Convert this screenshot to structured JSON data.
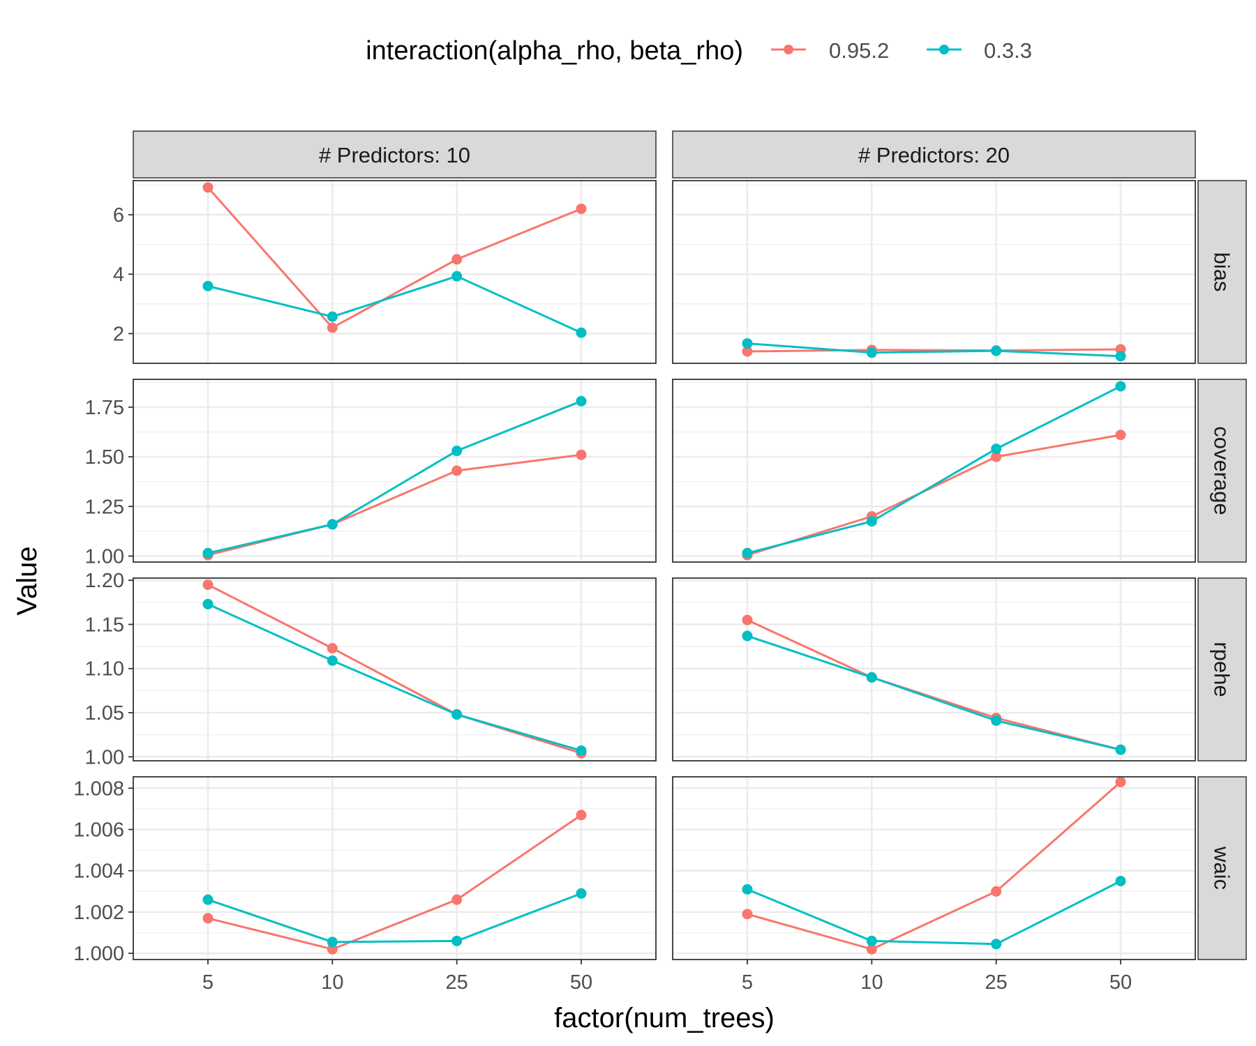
{
  "chart_data": {
    "type": "line",
    "xlabel": "factor(num_trees)",
    "ylabel": "Value",
    "x_categories": [
      "5",
      "10",
      "25",
      "50"
    ],
    "legend": {
      "title": "interaction(alpha_rho, beta_rho)",
      "placement": "top",
      "entries": [
        {
          "name": "0.95.2",
          "color": "#f8766d"
        },
        {
          "name": "0.3.3",
          "color": "#00bfc4"
        }
      ]
    },
    "columns": [
      "# Predictors: 10",
      "# Predictors: 20"
    ],
    "rows": [
      {
        "label": "bias",
        "ylim": [
          1.0,
          7.15
        ],
        "ticks": [
          2,
          4,
          6
        ],
        "tick_labels": [
          "2",
          "4",
          "6"
        ],
        "panels": [
          [
            {
              "name": "0.95.2",
              "values": [
                6.92,
                2.2,
                4.5,
                6.2
              ]
            },
            {
              "name": "0.3.3",
              "values": [
                3.6,
                2.57,
                3.93,
                2.03
              ]
            }
          ],
          [
            {
              "name": "0.95.2",
              "values": [
                1.4,
                1.45,
                1.43,
                1.47
              ]
            },
            {
              "name": "0.3.3",
              "values": [
                1.67,
                1.36,
                1.42,
                1.24
              ]
            }
          ]
        ]
      },
      {
        "label": "coverage",
        "ylim": [
          0.97,
          1.89
        ],
        "ticks": [
          1.0,
          1.25,
          1.5,
          1.75
        ],
        "tick_labels": [
          "1.00",
          "1.25",
          "1.50",
          "1.75"
        ],
        "panels": [
          [
            {
              "name": "0.95.2",
              "values": [
                1.005,
                1.16,
                1.43,
                1.51
              ]
            },
            {
              "name": "0.3.3",
              "values": [
                1.015,
                1.16,
                1.53,
                1.78
              ]
            }
          ],
          [
            {
              "name": "0.95.2",
              "values": [
                1.005,
                1.2,
                1.5,
                1.61
              ]
            },
            {
              "name": "0.3.3",
              "values": [
                1.015,
                1.175,
                1.54,
                1.855
              ]
            }
          ]
        ]
      },
      {
        "label": "rpehe",
        "ylim": [
          0.9955,
          1.2025
        ],
        "ticks": [
          1.0,
          1.05,
          1.1,
          1.15,
          1.2
        ],
        "tick_labels": [
          "1.00",
          "1.05",
          "1.10",
          "1.15",
          "1.20"
        ],
        "panels": [
          [
            {
              "name": "0.95.2",
              "values": [
                1.195,
                1.123,
                1.048,
                1.004
              ]
            },
            {
              "name": "0.3.3",
              "values": [
                1.173,
                1.109,
                1.048,
                1.007
              ]
            }
          ],
          [
            {
              "name": "0.95.2",
              "values": [
                1.155,
                1.09,
                1.044,
                1.008
              ]
            },
            {
              "name": "0.3.3",
              "values": [
                1.137,
                1.09,
                1.041,
                1.008
              ]
            }
          ]
        ]
      },
      {
        "label": "waic",
        "ylim": [
          0.9997,
          1.00855
        ],
        "ticks": [
          1.0,
          1.002,
          1.004,
          1.006,
          1.008
        ],
        "tick_labels": [
          "1.000",
          "1.002",
          "1.004",
          "1.006",
          "1.008"
        ],
        "panels": [
          [
            {
              "name": "0.95.2",
              "values": [
                1.0017,
                1.0002,
                1.0026,
                1.0067
              ]
            },
            {
              "name": "0.3.3",
              "values": [
                1.0026,
                1.00055,
                1.0006,
                1.0029
              ]
            }
          ],
          [
            {
              "name": "0.95.2",
              "values": [
                1.0019,
                1.0002,
                1.003,
                1.0083
              ]
            },
            {
              "name": "0.3.3",
              "values": [
                1.0031,
                1.0006,
                1.00045,
                1.0035
              ]
            }
          ]
        ]
      }
    ],
    "grid": true
  }
}
